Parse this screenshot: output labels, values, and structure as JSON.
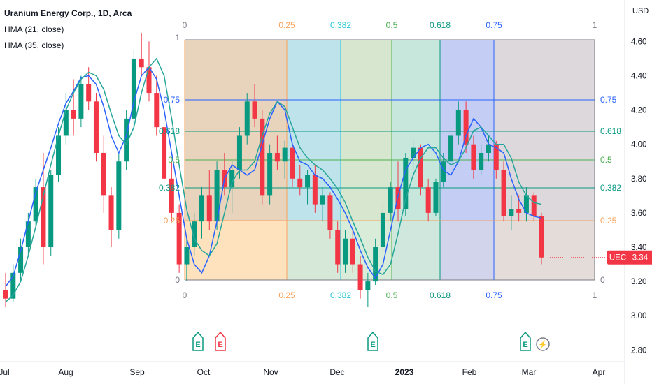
{
  "legend": {
    "title": "Uranium Energy Corp., 1D, Arca",
    "indicators": [
      "HMA (21, close)",
      "HMA (35, close)"
    ]
  },
  "price_axis": {
    "unit": "USD",
    "ticks": [
      "4.60",
      "4.40",
      "4.20",
      "4.00",
      "3.80",
      "3.60",
      "3.40",
      "3.20",
      "3.00",
      "2.80"
    ]
  },
  "time_axis": {
    "labels": [
      "Jul",
      "Aug",
      "Sep",
      "Oct",
      "Nov",
      "Dec",
      "2023",
      "Feb",
      "Mar",
      "Apr"
    ]
  },
  "last_price": {
    "symbol": "UEC",
    "value": "3.34",
    "color": "#f23645"
  },
  "fib_time_zone": {
    "top_labels": [
      "0",
      "0.25",
      "0.382",
      "0.5",
      "0.618",
      "0.75",
      "1"
    ],
    "bottom_labels": [
      "0",
      "0.25",
      "0.382",
      "0.5",
      "0.618",
      "0.75",
      "1"
    ],
    "level_labels": [
      "1",
      "0.75",
      "0.618",
      "0.5",
      "0.382",
      "0.25",
      "0"
    ],
    "right_labels": [
      "0.75",
      "0.618",
      "0.5",
      "0.382",
      "0.25",
      "0"
    ],
    "left_labels": [
      "0.75",
      "0.618",
      "0.5",
      "0.382",
      "0.25",
      "0"
    ]
  },
  "events": [
    {
      "kind": "earnings",
      "glyph": "E",
      "color": "#089981"
    },
    {
      "kind": "earnings",
      "glyph": "E",
      "color": "#f23645"
    },
    {
      "kind": "earnings",
      "glyph": "E",
      "color": "#089981"
    },
    {
      "kind": "earnings",
      "glyph": "E",
      "color": "#089981"
    },
    {
      "kind": "dividend-or-split",
      "glyph": "⚡",
      "color": "#787b86"
    }
  ],
  "chart_data": {
    "type": "candlestick",
    "title": "Uranium Energy Corp., 1D, Arca",
    "ylabel": "USD",
    "ylim": [
      2.7,
      4.7
    ],
    "x_labels": [
      "Jul",
      "Aug",
      "Sep",
      "Oct",
      "Nov",
      "Dec",
      "2023",
      "Feb",
      "Mar",
      "Apr"
    ],
    "series": [
      {
        "name": "HMA (21, close)",
        "color": "#2962ff",
        "values": [
          3.17,
          3.23,
          3.38,
          3.55,
          3.72,
          3.85,
          3.98,
          4.12,
          4.24,
          4.31,
          4.39,
          4.4,
          4.35,
          4.22,
          4.05,
          3.95,
          4.05,
          4.25,
          4.4,
          4.45,
          4.38,
          4.2,
          3.95,
          3.7,
          3.45,
          3.3,
          3.25,
          3.35,
          3.55,
          3.8,
          3.88,
          3.85,
          3.82,
          3.85,
          4.0,
          4.15,
          4.25,
          4.2,
          4.0,
          3.9,
          3.88,
          3.82,
          3.8,
          3.75,
          3.68,
          3.6,
          3.5,
          3.38,
          3.28,
          3.22,
          3.3,
          3.5,
          3.7,
          3.85,
          3.92,
          3.98,
          4.0,
          3.95,
          3.85,
          3.82,
          3.9,
          4.05,
          4.15,
          4.1,
          4.0,
          3.98,
          3.95,
          3.8,
          3.68,
          3.6,
          3.58,
          3.57
        ]
      },
      {
        "name": "HMA (35, close)",
        "color": "#26a69a",
        "values": [
          3.08,
          3.12,
          3.2,
          3.35,
          3.52,
          3.7,
          3.88,
          4.05,
          4.2,
          4.3,
          4.38,
          4.42,
          4.4,
          4.32,
          4.18,
          4.05,
          4.0,
          4.1,
          4.3,
          4.45,
          4.5,
          4.4,
          4.15,
          3.88,
          3.62,
          3.45,
          3.38,
          3.35,
          3.42,
          3.6,
          3.78,
          3.85,
          3.85,
          3.9,
          4.05,
          4.18,
          4.25,
          4.22,
          4.1,
          3.98,
          3.92,
          3.88,
          3.85,
          3.8,
          3.74,
          3.66,
          3.55,
          3.45,
          3.34,
          3.26,
          3.24,
          3.3,
          3.48,
          3.68,
          3.82,
          3.92,
          3.98,
          3.98,
          3.92,
          3.88,
          3.9,
          3.98,
          4.08,
          4.1,
          4.05,
          4.0,
          4.0,
          3.92,
          3.78,
          3.7,
          3.66,
          3.65
        ]
      }
    ],
    "candles": [
      {
        "o": 3.15,
        "h": 3.25,
        "l": 3.05,
        "c": 3.1
      },
      {
        "o": 3.1,
        "h": 3.3,
        "l": 3.08,
        "c": 3.25
      },
      {
        "o": 3.25,
        "h": 3.45,
        "l": 3.2,
        "c": 3.4
      },
      {
        "o": 3.4,
        "h": 3.6,
        "l": 3.35,
        "c": 3.55
      },
      {
        "o": 3.55,
        "h": 3.8,
        "l": 3.5,
        "c": 3.75
      },
      {
        "o": 3.75,
        "h": 3.95,
        "l": 3.3,
        "c": 3.4
      },
      {
        "o": 3.4,
        "h": 3.85,
        "l": 3.35,
        "c": 3.82
      },
      {
        "o": 3.82,
        "h": 4.1,
        "l": 3.78,
        "c": 4.05
      },
      {
        "o": 4.05,
        "h": 4.3,
        "l": 4.0,
        "c": 4.2
      },
      {
        "o": 4.2,
        "h": 4.38,
        "l": 4.05,
        "c": 4.15
      },
      {
        "o": 4.15,
        "h": 4.4,
        "l": 4.1,
        "c": 4.35
      },
      {
        "o": 4.35,
        "h": 4.45,
        "l": 4.2,
        "c": 4.25
      },
      {
        "o": 4.25,
        "h": 4.3,
        "l": 3.9,
        "c": 3.95
      },
      {
        "o": 3.95,
        "h": 4.05,
        "l": 3.6,
        "c": 3.7
      },
      {
        "o": 3.7,
        "h": 3.75,
        "l": 3.4,
        "c": 3.5
      },
      {
        "o": 3.5,
        "h": 3.95,
        "l": 3.45,
        "c": 3.9
      },
      {
        "o": 3.9,
        "h": 4.2,
        "l": 3.85,
        "c": 4.15
      },
      {
        "o": 4.15,
        "h": 4.55,
        "l": 4.1,
        "c": 4.5
      },
      {
        "o": 4.5,
        "h": 4.65,
        "l": 4.4,
        "c": 4.45
      },
      {
        "o": 4.45,
        "h": 4.6,
        "l": 4.25,
        "c": 4.3
      },
      {
        "o": 4.3,
        "h": 4.4,
        "l": 4.05,
        "c": 4.1
      },
      {
        "o": 4.1,
        "h": 4.15,
        "l": 3.75,
        "c": 3.8
      },
      {
        "o": 3.8,
        "h": 3.9,
        "l": 3.55,
        "c": 3.6
      },
      {
        "o": 3.6,
        "h": 3.65,
        "l": 3.25,
        "c": 3.3
      },
      {
        "o": 3.3,
        "h": 3.45,
        "l": 3.2,
        "c": 3.4
      },
      {
        "o": 3.4,
        "h": 3.6,
        "l": 3.35,
        "c": 3.55
      },
      {
        "o": 3.55,
        "h": 3.75,
        "l": 3.45,
        "c": 3.7
      },
      {
        "o": 3.7,
        "h": 3.85,
        "l": 3.5,
        "c": 3.55
      },
      {
        "o": 3.55,
        "h": 3.9,
        "l": 3.5,
        "c": 3.85
      },
      {
        "o": 3.85,
        "h": 3.95,
        "l": 3.7,
        "c": 3.75
      },
      {
        "o": 3.75,
        "h": 3.9,
        "l": 3.6,
        "c": 3.85
      },
      {
        "o": 3.85,
        "h": 4.1,
        "l": 3.8,
        "c": 4.05
      },
      {
        "o": 4.05,
        "h": 4.3,
        "l": 4.0,
        "c": 4.25
      },
      {
        "o": 4.25,
        "h": 4.35,
        "l": 4.1,
        "c": 4.15
      },
      {
        "o": 4.15,
        "h": 4.2,
        "l": 3.65,
        "c": 3.7
      },
      {
        "o": 3.7,
        "h": 4.0,
        "l": 3.65,
        "c": 3.95
      },
      {
        "o": 3.95,
        "h": 4.05,
        "l": 3.85,
        "c": 3.9
      },
      {
        "o": 3.9,
        "h": 4.02,
        "l": 3.8,
        "c": 3.98
      },
      {
        "o": 3.98,
        "h": 4.0,
        "l": 3.75,
        "c": 3.8
      },
      {
        "o": 3.8,
        "h": 3.88,
        "l": 3.7,
        "c": 3.75
      },
      {
        "o": 3.75,
        "h": 3.85,
        "l": 3.65,
        "c": 3.82
      },
      {
        "o": 3.82,
        "h": 3.88,
        "l": 3.6,
        "c": 3.65
      },
      {
        "o": 3.65,
        "h": 3.75,
        "l": 3.55,
        "c": 3.7
      },
      {
        "o": 3.7,
        "h": 3.72,
        "l": 3.45,
        "c": 3.5
      },
      {
        "o": 3.5,
        "h": 3.55,
        "l": 3.25,
        "c": 3.3
      },
      {
        "o": 3.3,
        "h": 3.5,
        "l": 3.25,
        "c": 3.45
      },
      {
        "o": 3.45,
        "h": 3.5,
        "l": 3.25,
        "c": 3.3
      },
      {
        "o": 3.3,
        "h": 3.35,
        "l": 3.1,
        "c": 3.15
      },
      {
        "o": 3.15,
        "h": 3.25,
        "l": 3.05,
        "c": 3.2
      },
      {
        "o": 3.2,
        "h": 3.45,
        "l": 3.18,
        "c": 3.4
      },
      {
        "o": 3.4,
        "h": 3.65,
        "l": 3.38,
        "c": 3.6
      },
      {
        "o": 3.6,
        "h": 3.78,
        "l": 3.55,
        "c": 3.75
      },
      {
        "o": 3.75,
        "h": 3.9,
        "l": 3.55,
        "c": 3.62
      },
      {
        "o": 3.62,
        "h": 3.95,
        "l": 3.58,
        "c": 3.92
      },
      {
        "o": 3.92,
        "h": 4.02,
        "l": 3.85,
        "c": 3.98
      },
      {
        "o": 3.98,
        "h": 4.0,
        "l": 3.7,
        "c": 3.75
      },
      {
        "o": 3.75,
        "h": 3.8,
        "l": 3.55,
        "c": 3.6
      },
      {
        "o": 3.6,
        "h": 3.8,
        "l": 3.58,
        "c": 3.78
      },
      {
        "o": 3.78,
        "h": 3.95,
        "l": 3.75,
        "c": 3.9
      },
      {
        "o": 3.9,
        "h": 4.1,
        "l": 3.85,
        "c": 4.05
      },
      {
        "o": 4.05,
        "h": 4.25,
        "l": 4.0,
        "c": 4.2
      },
      {
        "o": 4.2,
        "h": 4.25,
        "l": 3.95,
        "c": 4.0
      },
      {
        "o": 4.0,
        "h": 4.05,
        "l": 3.8,
        "c": 3.85
      },
      {
        "o": 3.85,
        "h": 4.0,
        "l": 3.82,
        "c": 3.95
      },
      {
        "o": 3.95,
        "h": 4.05,
        "l": 3.9,
        "c": 4.0
      },
      {
        "o": 4.0,
        "h": 4.02,
        "l": 3.8,
        "c": 3.85
      },
      {
        "o": 3.85,
        "h": 3.9,
        "l": 3.55,
        "c": 3.58
      },
      {
        "o": 3.58,
        "h": 3.7,
        "l": 3.5,
        "c": 3.62
      },
      {
        "o": 3.62,
        "h": 3.7,
        "l": 3.55,
        "c": 3.6
      },
      {
        "o": 3.6,
        "h": 3.75,
        "l": 3.55,
        "c": 3.7
      },
      {
        "o": 3.7,
        "h": 3.72,
        "l": 3.55,
        "c": 3.58
      },
      {
        "o": 3.58,
        "h": 3.6,
        "l": 3.3,
        "c": 3.34
      }
    ]
  }
}
